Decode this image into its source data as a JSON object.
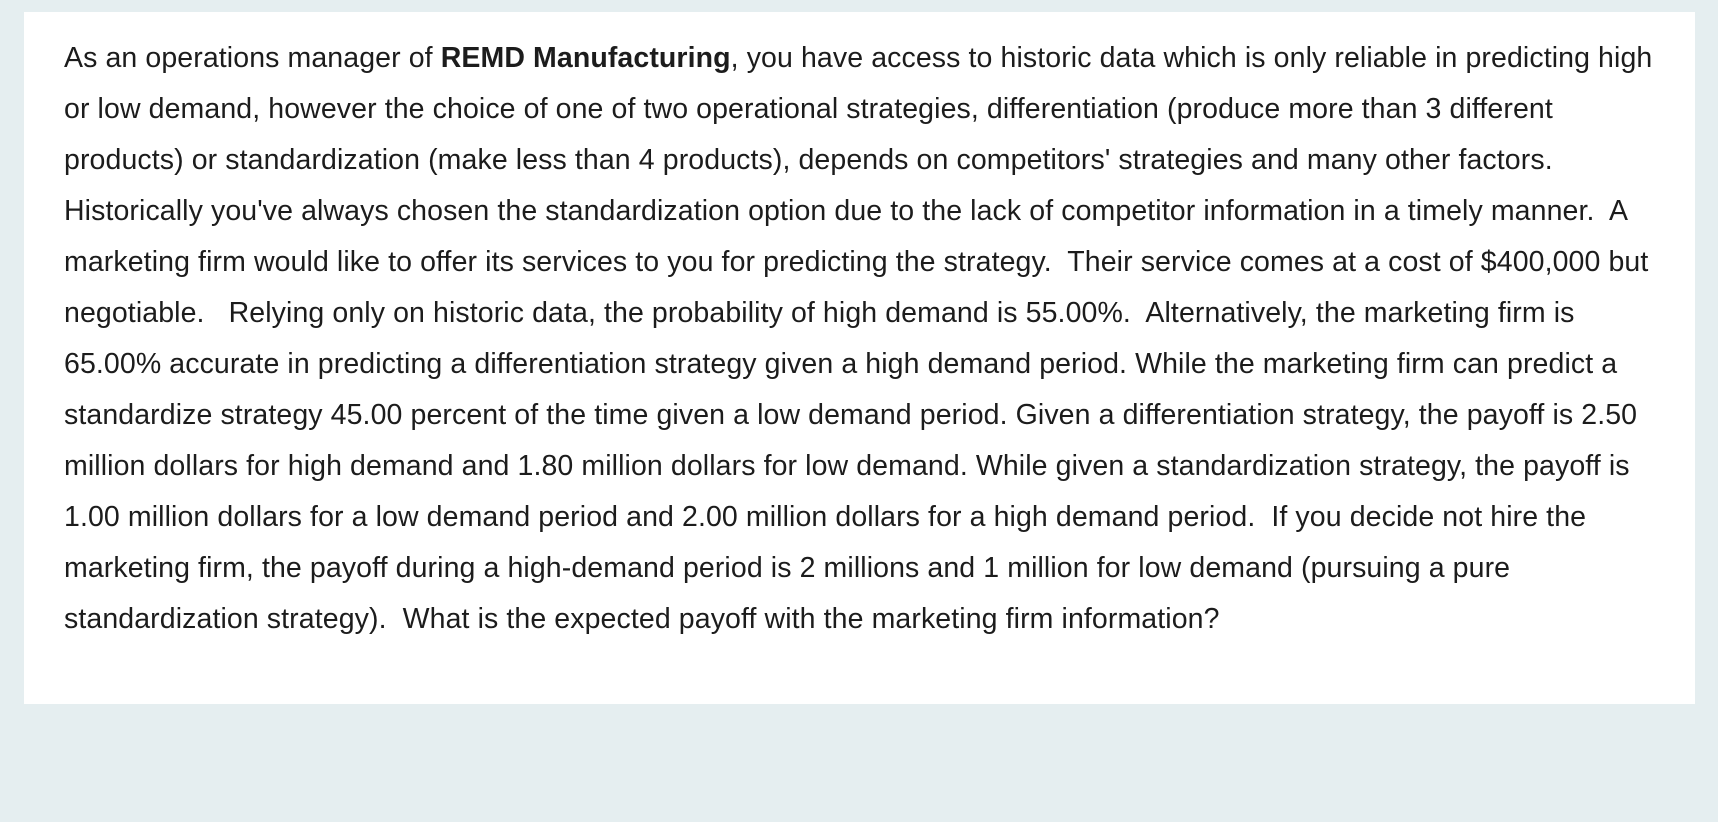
{
  "page": {
    "background_color": "#e5eef0",
    "panel_color": "#ffffff",
    "text_color": "#1c1c1c"
  },
  "question": {
    "prefix": "As an operations manager of ",
    "company": "REMD Manufacturing",
    "body": ", you have access to historic data which is only reliable in predicting high or low demand, however the choice of one of two operational strategies, differentiation (produce more than 3 different products) or standardization (make less than 4 products), depends on competitors' strategies and many other factors.  Historically you've always chosen the standardization option due to the lack of competitor information in a timely manner.  A marketing firm would like to offer its services to you for predicting the strategy.  Their service comes at a cost of $400,000 but negotiable.   Relying only on historic data, the probability of high demand is 55.00%.  Alternatively, the marketing firm is 65.00% accurate in predicting a differentiation strategy given a high demand period. While the marketing firm can predict a standardize strategy 45.00 percent of the time given a low demand period. Given a differentiation strategy, the payoff is 2.50 million dollars for high demand and 1.80 million dollars for low demand. While given a standardization strategy, the payoff is 1.00 million dollars for a low demand period and 2.00 million dollars for a high demand period.  If you decide not hire the marketing firm, the payoff during a high-demand period is 2 millions and 1 million for low demand (pursuing a pure standardization strategy).  What is the expected payoff with the marketing firm information?"
  }
}
